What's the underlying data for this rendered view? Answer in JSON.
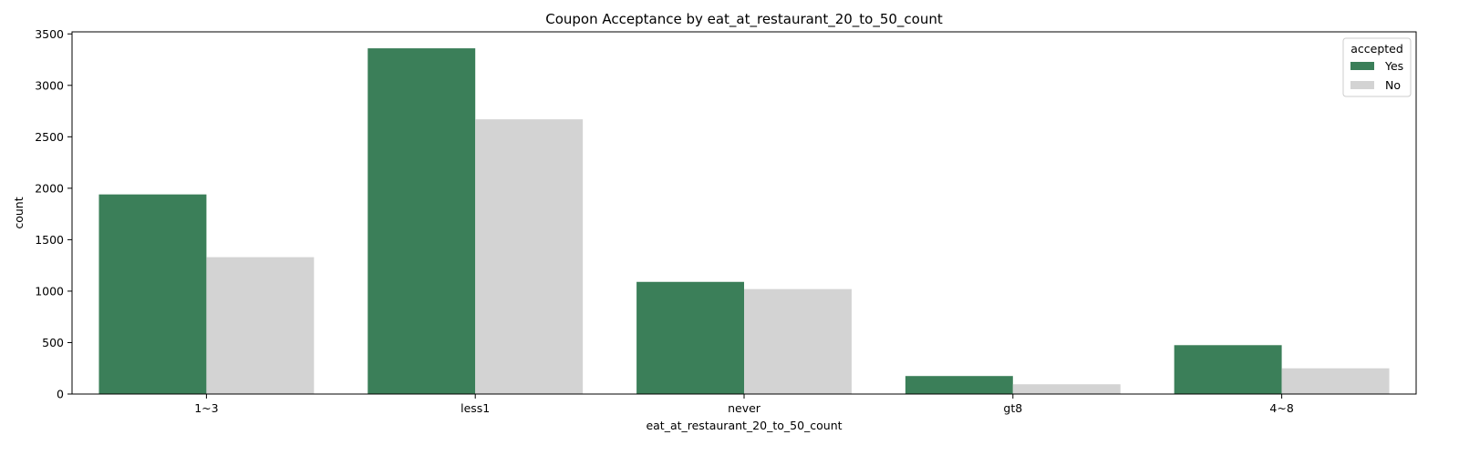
{
  "chart_data": {
    "type": "bar",
    "title": "Coupon Acceptance by eat_at_restaurant_20_to_50_count",
    "xlabel": "eat_at_restaurant_20_to_50_count",
    "ylabel": "count",
    "categories": [
      "1~3",
      "less1",
      "never",
      "gt8",
      "4~8"
    ],
    "series": [
      {
        "name": "Yes",
        "color": "#3b7f59",
        "values": [
          1940,
          3360,
          1090,
          175,
          475
        ]
      },
      {
        "name": "No",
        "color": "#d3d3d3",
        "values": [
          1330,
          2670,
          1020,
          95,
          250
        ]
      }
    ],
    "ylim": [
      0,
      3520
    ],
    "yticks": [
      0,
      500,
      1000,
      1500,
      2000,
      2500,
      3000,
      3500
    ],
    "grid": false,
    "legend": {
      "title": "accepted",
      "placement": "top-right"
    }
  }
}
